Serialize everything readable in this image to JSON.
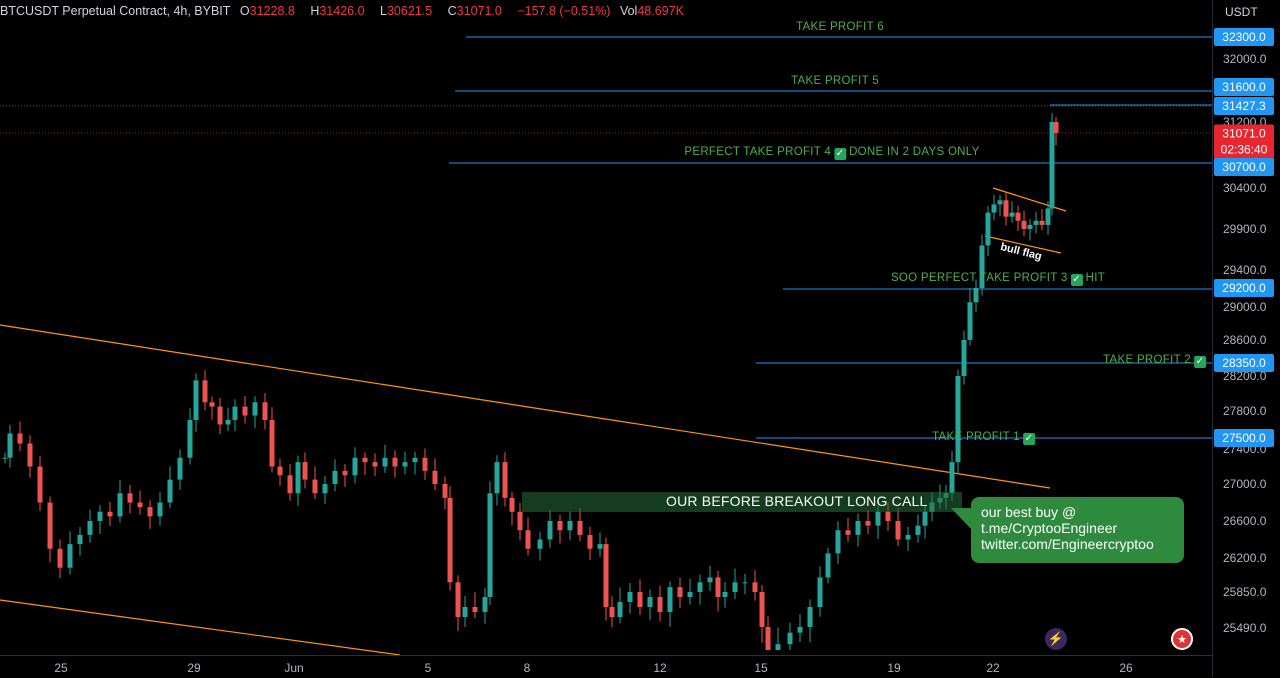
{
  "header": {
    "symbol": "BTCUSDT Perpetual Contract, 4h, BYBIT",
    "open_key": "O",
    "open": "31228.8",
    "high_key": "H",
    "high": "31426.0",
    "low_key": "L",
    "low": "30621.5",
    "close_key": "C",
    "close": "31071.0",
    "change": "−157.8 (−0.51%)",
    "vol_key": "Vol",
    "vol": "48.697K"
  },
  "price_axis": {
    "currency": "USDT",
    "ticks": [
      "32000.0",
      "31200.0",
      "30400.0",
      "29900.0",
      "29400.0",
      "29000.0",
      "28600.0",
      "28200.0",
      "27800.0",
      "27400.0",
      "27000.0",
      "26600.0",
      "26200.0",
      "25850.0",
      "25490.0"
    ],
    "tags": {
      "tp6": "32300.0",
      "tp5": "31600.0",
      "high_line": "31427.3",
      "last_price": "31071.0",
      "countdown": "02:36:40",
      "tp4": "30700.0",
      "tp3": "29200.0",
      "tp2": "28350.0",
      "tp1": "27500.0"
    }
  },
  "time_axis": [
    "25",
    "29",
    "Jun",
    "5",
    "8",
    "12",
    "15",
    "19",
    "22",
    "26"
  ],
  "annotations": {
    "tp6": "TAKE PROFIT 6",
    "tp5": "TAKE PROFIT 5",
    "tp4_a": "PERFECT TAKE PROFIT 4",
    "tp4_b": "DONE IN 2 DAYS ONLY",
    "tp3_a": "SOO PERFECT TAKE PROFIT 3",
    "tp3_b": "HIT",
    "tp2": "TAKE PROFIT 2",
    "tp1": "TAKE PROFIT 1",
    "breakout": "OUR BEFORE BREAKOUT LONG CALL",
    "flag": "bull flag",
    "callout_line1": "our best buy @",
    "callout_line2": "t.me/CryptooEngineer",
    "callout_line3": "twitter.com/Engineercryptoo"
  },
  "colors": {
    "up": "#26a69a",
    "down": "#ef5350",
    "tp_line": "#2196f3",
    "trendline": "#ff9800",
    "annotation_green": "#4caf50"
  },
  "icons": {
    "bolt": "lightning-icon",
    "flag": "us-flag-icon"
  }
}
